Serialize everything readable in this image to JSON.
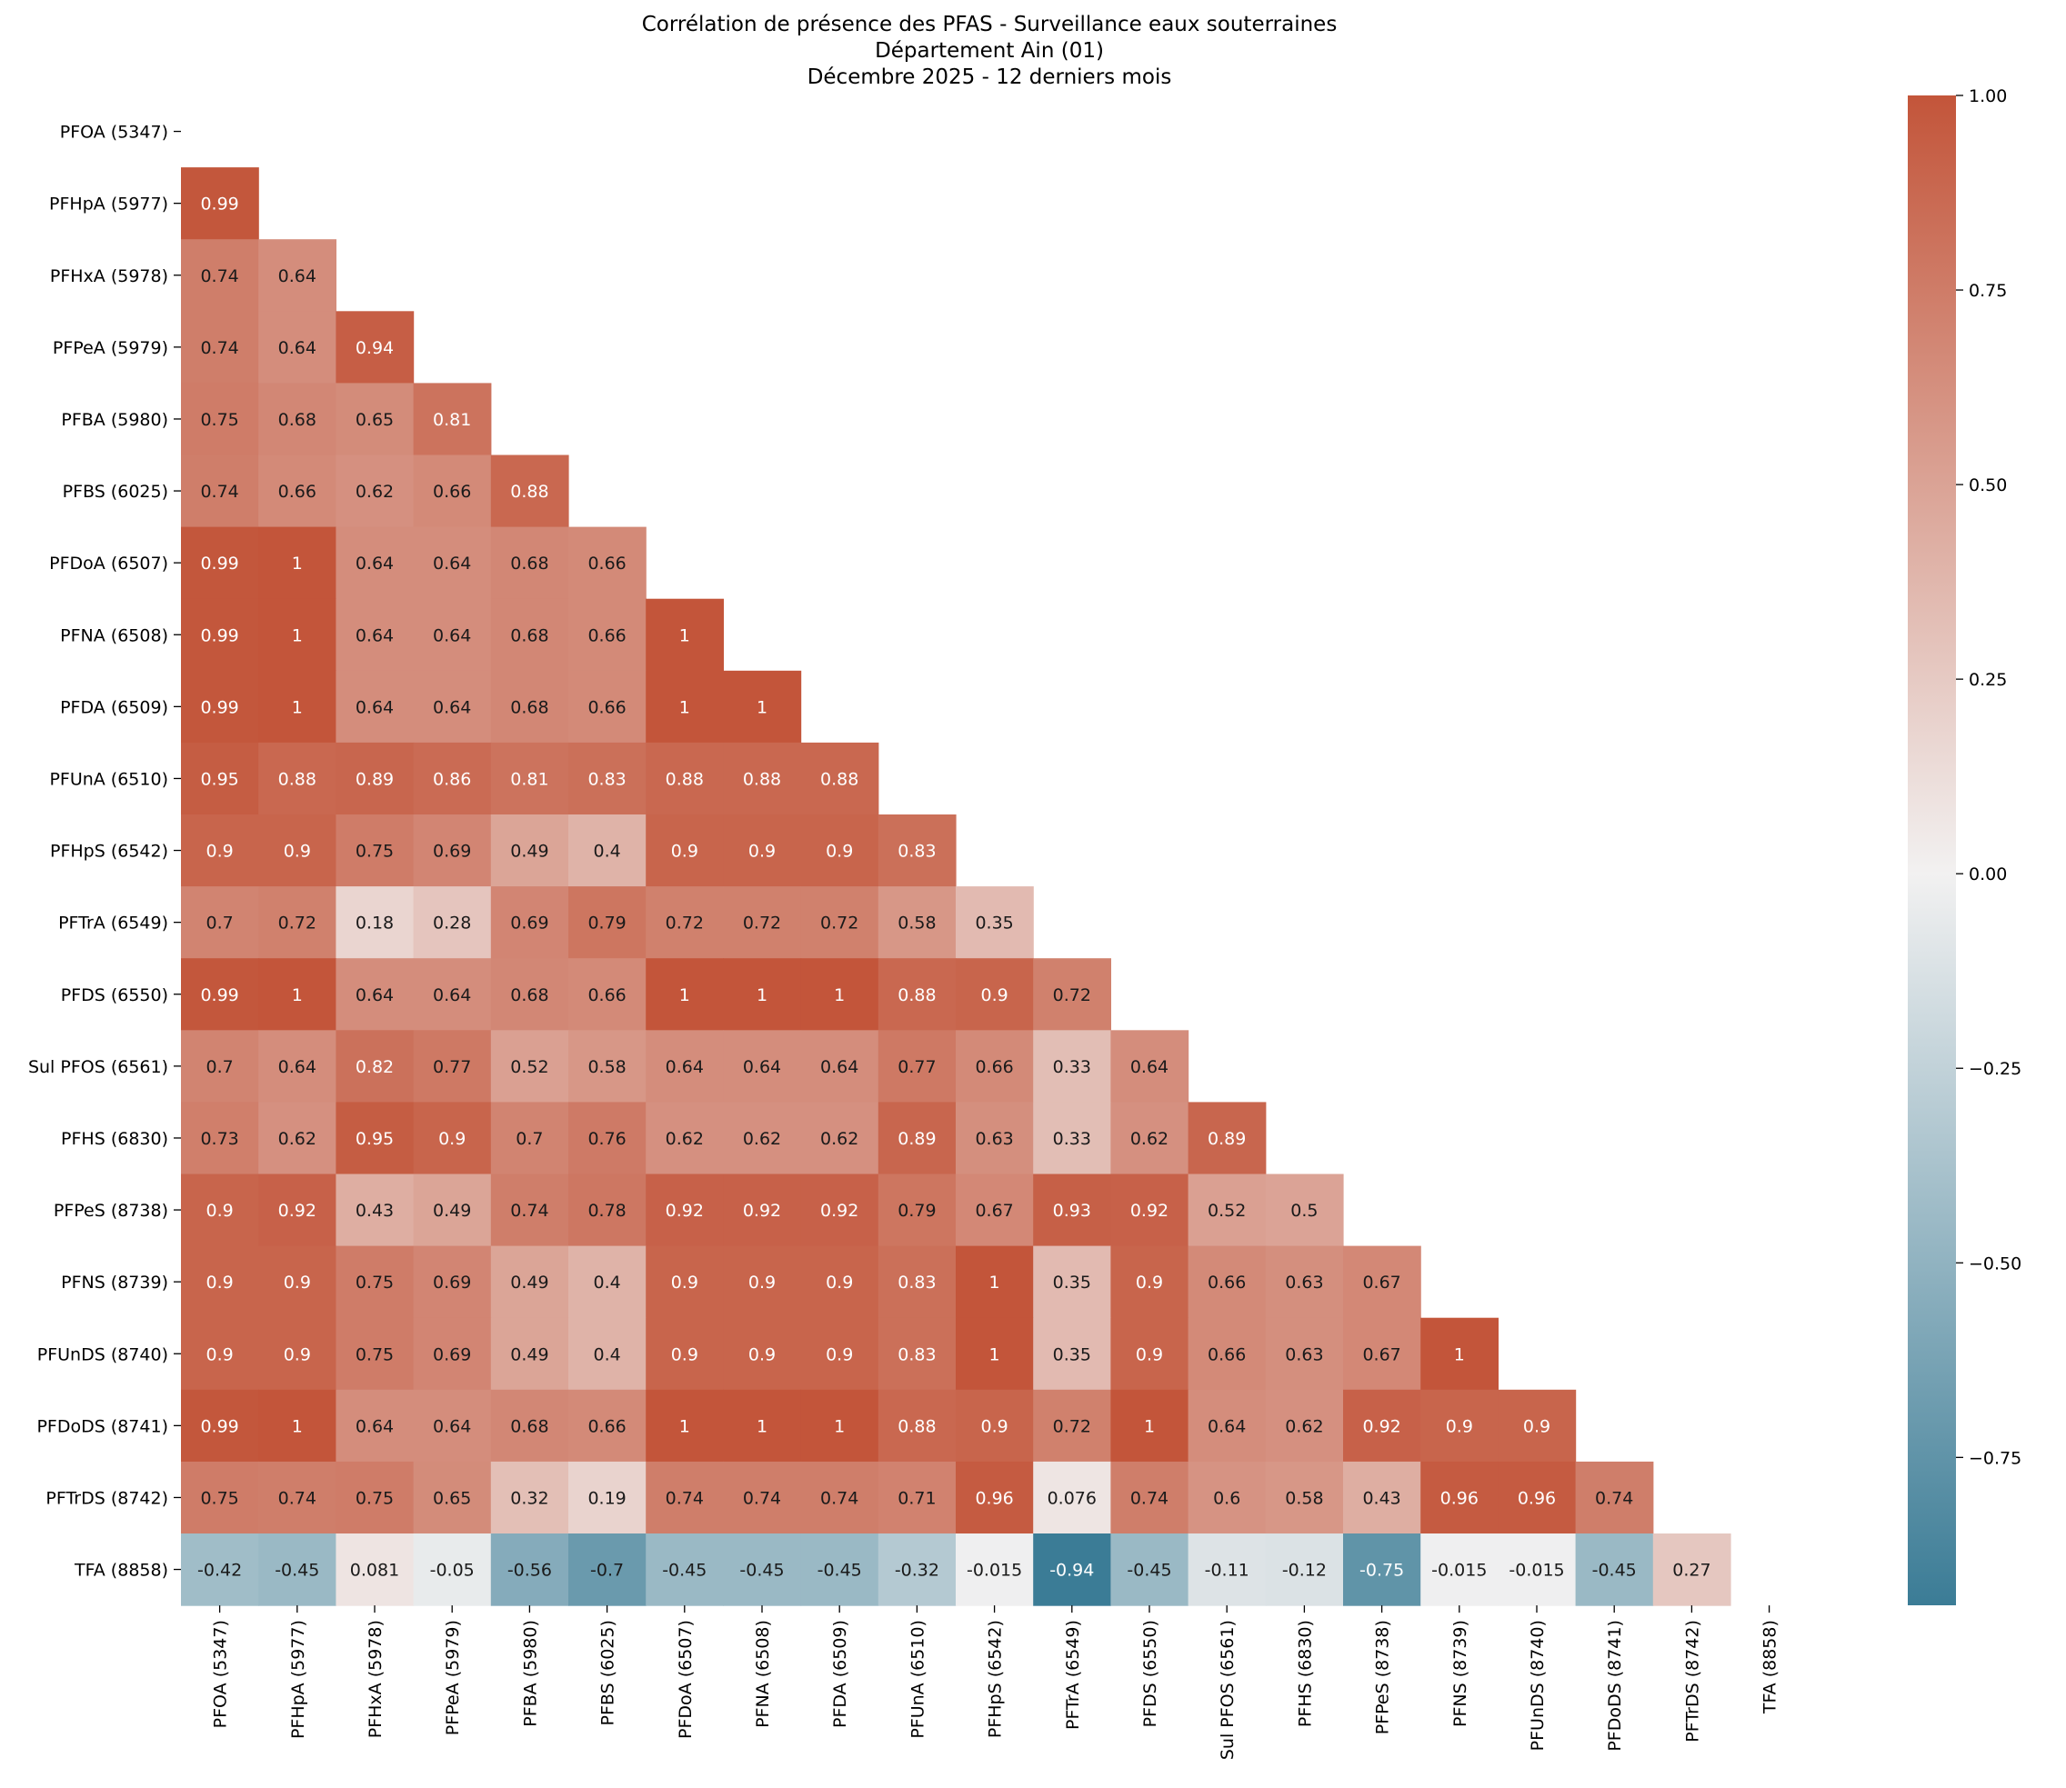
{
  "chart_data": {
    "type": "heatmap",
    "title_lines": [
      "Corrélation de présence des PFAS - Surveillance eaux souterraines",
      "Département Ain (01)",
      "Décembre 2025 - 12 derniers mois"
    ],
    "labels": [
      "PFOA (5347)",
      "PFHpA (5977)",
      "PFHxA (5978)",
      "PFPeA (5979)",
      "PFBA (5980)",
      "PFBS (6025)",
      "PFDoA (6507)",
      "PFNA (6508)",
      "PFDA (6509)",
      "PFUnA (6510)",
      "PFHpS (6542)",
      "PFTrA (6549)",
      "PFDS (6550)",
      "Sul PFOS (6561)",
      "PFHS (6830)",
      "PFPeS (8738)",
      "PFNS (8739)",
      "PFUnDS (8740)",
      "PFDoDS (8741)",
      "PFTrDS (8742)",
      "TFA (8858)"
    ],
    "lower_triangle": [
      [],
      [
        "0.99"
      ],
      [
        "0.74",
        "0.64"
      ],
      [
        "0.74",
        "0.64",
        "0.94"
      ],
      [
        "0.75",
        "0.68",
        "0.65",
        "0.81"
      ],
      [
        "0.74",
        "0.66",
        "0.62",
        "0.66",
        "0.88"
      ],
      [
        "0.99",
        "1",
        "0.64",
        "0.64",
        "0.68",
        "0.66"
      ],
      [
        "0.99",
        "1",
        "0.64",
        "0.64",
        "0.68",
        "0.66",
        "1"
      ],
      [
        "0.99",
        "1",
        "0.64",
        "0.64",
        "0.68",
        "0.66",
        "1",
        "1"
      ],
      [
        "0.95",
        "0.88",
        "0.89",
        "0.86",
        "0.81",
        "0.83",
        "0.88",
        "0.88",
        "0.88"
      ],
      [
        "0.9",
        "0.9",
        "0.75",
        "0.69",
        "0.49",
        "0.4",
        "0.9",
        "0.9",
        "0.9",
        "0.83"
      ],
      [
        "0.7",
        "0.72",
        "0.18",
        "0.28",
        "0.69",
        "0.79",
        "0.72",
        "0.72",
        "0.72",
        "0.58",
        "0.35"
      ],
      [
        "0.99",
        "1",
        "0.64",
        "0.64",
        "0.68",
        "0.66",
        "1",
        "1",
        "1",
        "0.88",
        "0.9",
        "0.72"
      ],
      [
        "0.7",
        "0.64",
        "0.82",
        "0.77",
        "0.52",
        "0.58",
        "0.64",
        "0.64",
        "0.64",
        "0.77",
        "0.66",
        "0.33",
        "0.64"
      ],
      [
        "0.73",
        "0.62",
        "0.95",
        "0.9",
        "0.7",
        "0.76",
        "0.62",
        "0.62",
        "0.62",
        "0.89",
        "0.63",
        "0.33",
        "0.62",
        "0.89"
      ],
      [
        "0.9",
        "0.92",
        "0.43",
        "0.49",
        "0.74",
        "0.78",
        "0.92",
        "0.92",
        "0.92",
        "0.79",
        "0.67",
        "0.93",
        "0.92",
        "0.52",
        "0.5"
      ],
      [
        "0.9",
        "0.9",
        "0.75",
        "0.69",
        "0.49",
        "0.4",
        "0.9",
        "0.9",
        "0.9",
        "0.83",
        "1",
        "0.35",
        "0.9",
        "0.66",
        "0.63",
        "0.67"
      ],
      [
        "0.9",
        "0.9",
        "0.75",
        "0.69",
        "0.49",
        "0.4",
        "0.9",
        "0.9",
        "0.9",
        "0.83",
        "1",
        "0.35",
        "0.9",
        "0.66",
        "0.63",
        "0.67",
        "1"
      ],
      [
        "0.99",
        "1",
        "0.64",
        "0.64",
        "0.68",
        "0.66",
        "1",
        "1",
        "1",
        "0.88",
        "0.9",
        "0.72",
        "1",
        "0.64",
        "0.62",
        "0.92",
        "0.9",
        "0.9"
      ],
      [
        "0.75",
        "0.74",
        "0.75",
        "0.65",
        "0.32",
        "0.19",
        "0.74",
        "0.74",
        "0.74",
        "0.71",
        "0.96",
        "0.076",
        "0.74",
        "0.6",
        "0.58",
        "0.43",
        "0.96",
        "0.96",
        "0.74"
      ],
      [
        "-0.42",
        "-0.45",
        "0.081",
        "-0.05",
        "-0.56",
        "-0.7",
        "-0.45",
        "-0.45",
        "-0.45",
        "-0.32",
        "-0.015",
        "-0.94",
        "-0.45",
        "-0.11",
        "-0.12",
        "-0.75",
        "-0.015",
        "-0.015",
        "-0.45",
        "0.27"
      ]
    ],
    "colorbar": {
      "vmin": -0.94,
      "vmax": 1.0,
      "center": 0,
      "ticks": [
        "1.00",
        "0.75",
        "0.50",
        "0.25",
        "0.00",
        "−0.25",
        "−0.50",
        "−0.75"
      ],
      "tick_values": [
        1.0,
        0.75,
        0.5,
        0.25,
        0.0,
        -0.25,
        -0.5,
        -0.75
      ],
      "negative_color": "#3b7c96",
      "center_color": "#f2f1f1",
      "positive_color": "#c3553a"
    },
    "mask": "upper triangle incl. diagonal",
    "xlabel": "",
    "ylabel": ""
  }
}
